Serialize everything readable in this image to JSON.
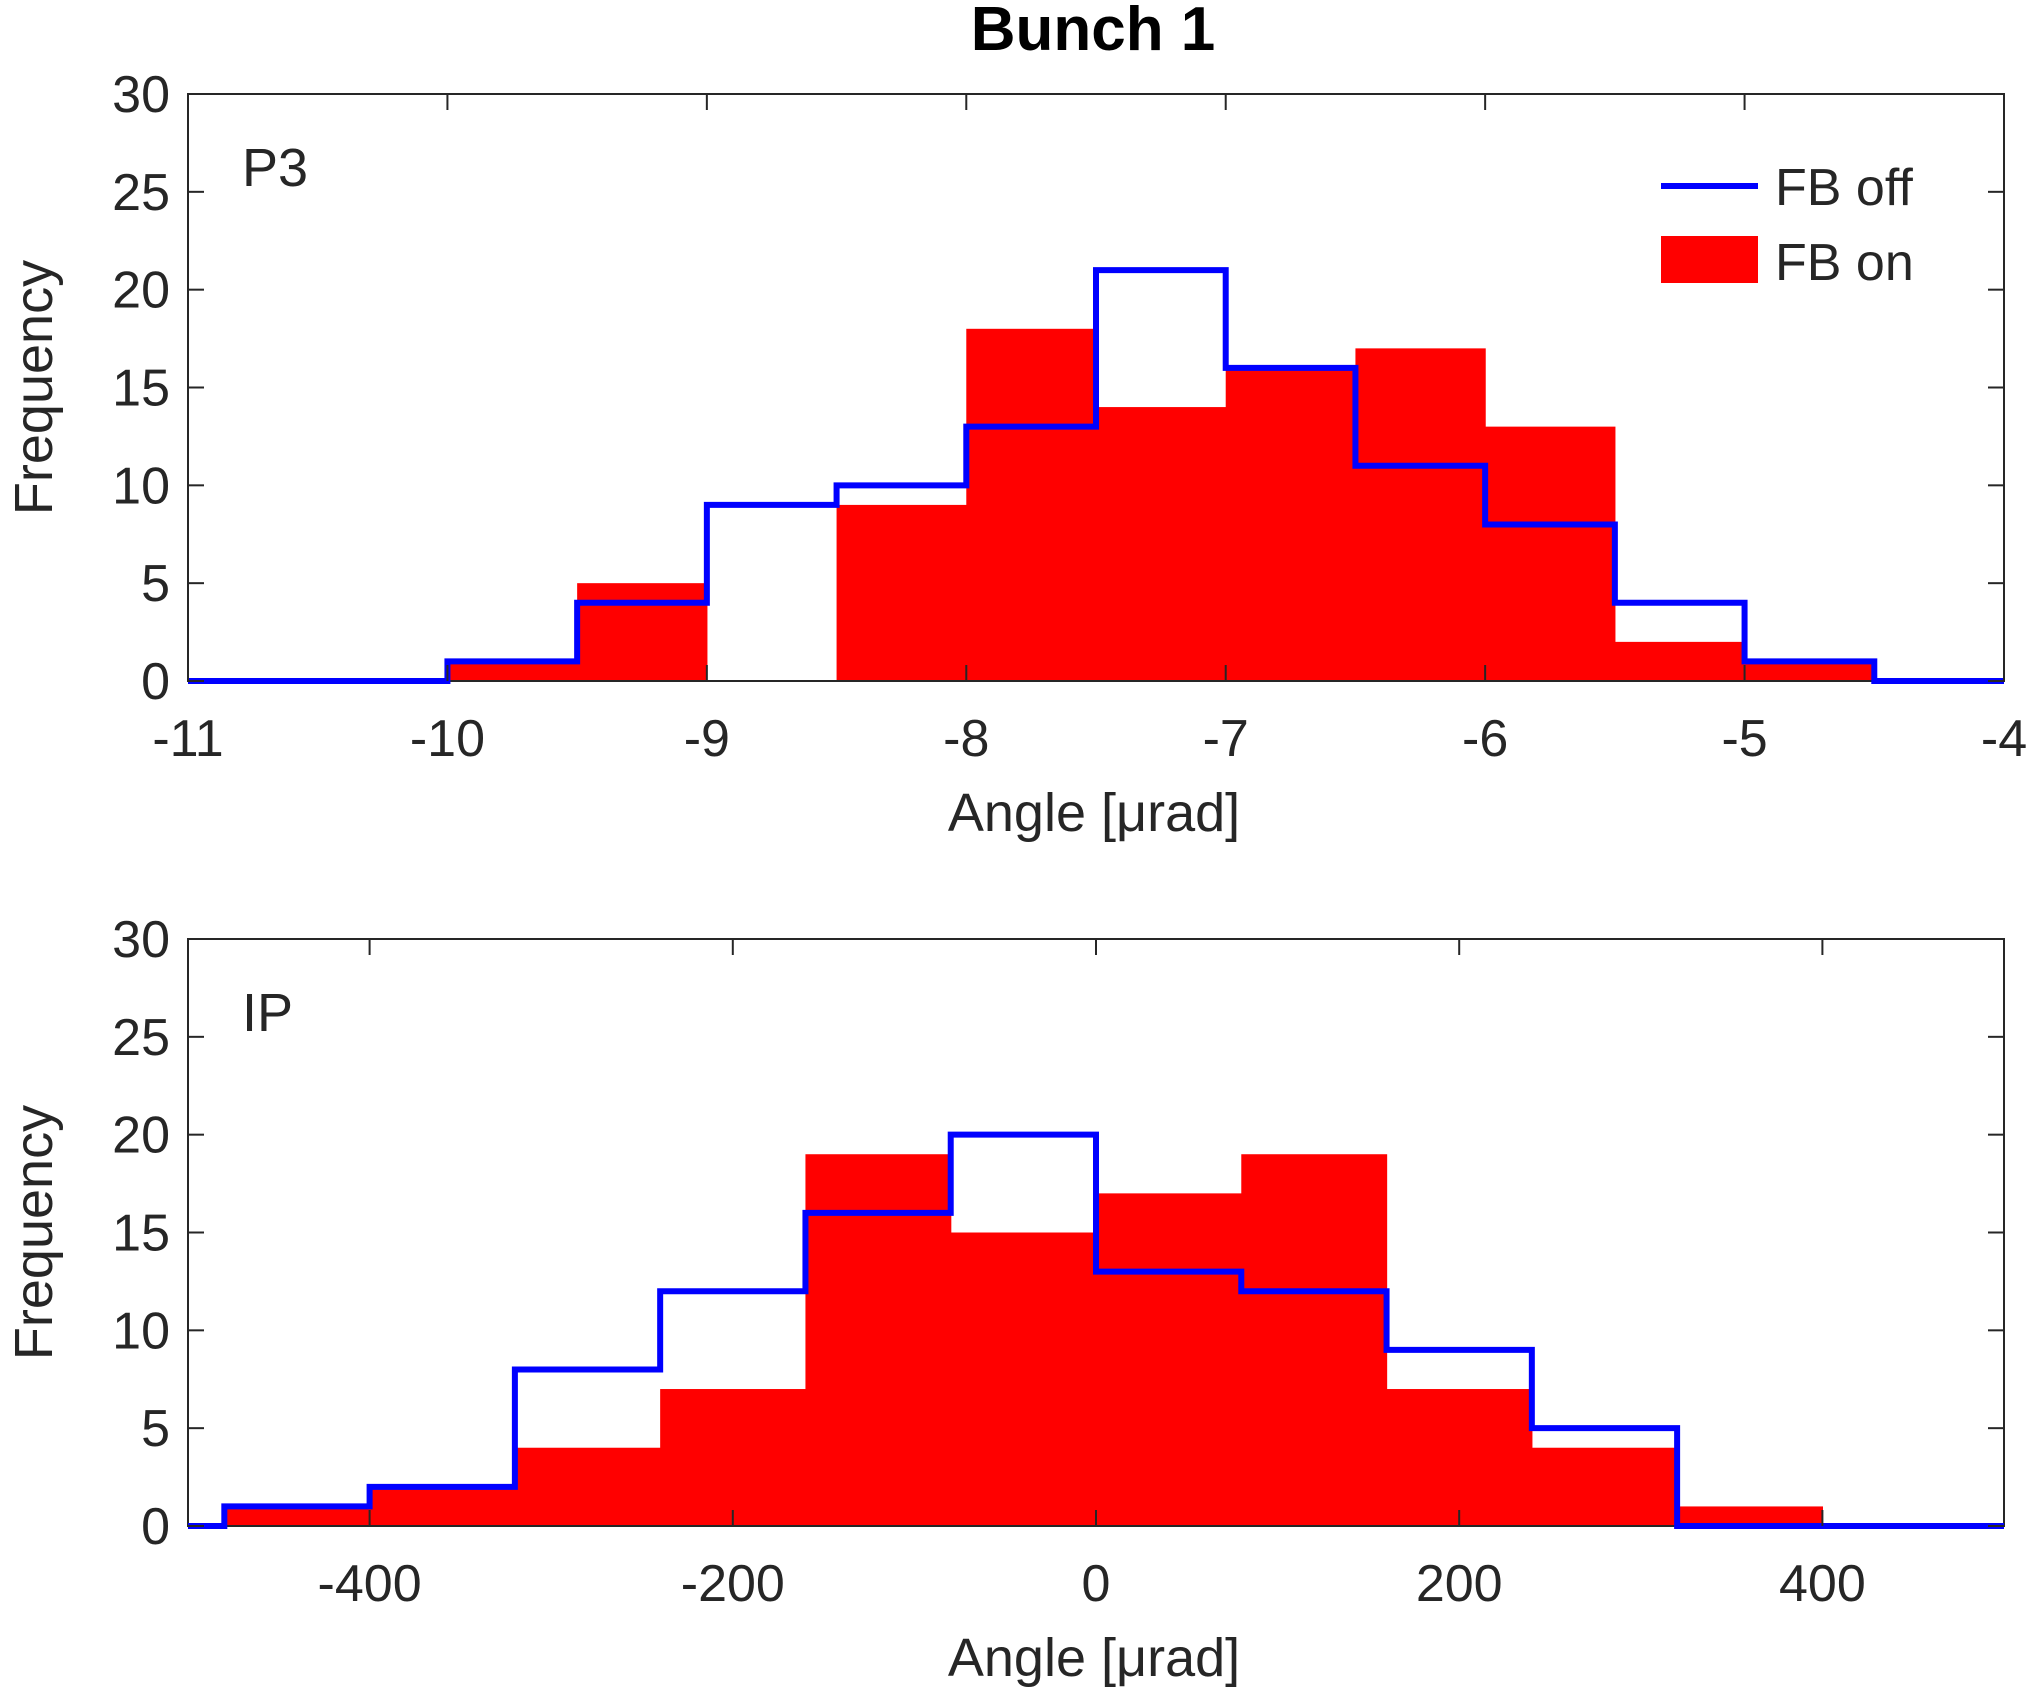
{
  "title": "Bunch 1",
  "colors": {
    "fb_off": "#0000ff",
    "fb_on": "#ff0000",
    "axis": "#262626"
  },
  "legend": {
    "position": "top-right",
    "entries": [
      "FB off",
      "FB on"
    ]
  },
  "chart_data": [
    {
      "type": "histogram",
      "panel_label": "P3",
      "xlabel": "Angle [μrad]",
      "ylabel": "Frequency",
      "xlim": [
        -11,
        -4
      ],
      "ylim": [
        0,
        30
      ],
      "xticks": [
        -11,
        -10,
        -9,
        -8,
        -7,
        -6,
        -5,
        -4
      ],
      "xtick_labels": [
        "-11",
        "-10",
        "-9",
        "-8",
        "-7",
        "-6",
        "-5",
        "-4"
      ],
      "yticks": [
        0,
        5,
        10,
        15,
        20,
        25,
        30
      ],
      "ytick_labels": [
        "0",
        "5",
        "10",
        "15",
        "20",
        "25",
        "30"
      ],
      "bin_edges": [
        -10,
        -9.5,
        -9,
        -8.5,
        -8,
        -7.5,
        -7,
        -6.5,
        -6,
        -5.5,
        -5,
        -4.5
      ],
      "series": [
        {
          "name": "FB on",
          "style": "filled",
          "values": [
            1,
            5,
            0,
            9,
            18,
            14,
            16,
            17,
            13,
            2,
            1
          ]
        },
        {
          "name": "FB off",
          "style": "stairs",
          "values": [
            1,
            4,
            9,
            10,
            13,
            21,
            16,
            11,
            8,
            4,
            1
          ]
        }
      ]
    },
    {
      "type": "histogram",
      "panel_label": "IP",
      "xlabel": "Angle [μrad]",
      "ylabel": "Frequency",
      "xlim": [
        -500,
        500
      ],
      "ylim": [
        0,
        30
      ],
      "xticks": [
        -400,
        -200,
        0,
        200,
        400
      ],
      "xtick_labels": [
        "-400",
        "-200",
        "0",
        "200",
        "400"
      ],
      "yticks": [
        0,
        5,
        10,
        15,
        20,
        25,
        30
      ],
      "ytick_labels": [
        "0",
        "5",
        "10",
        "15",
        "20",
        "25",
        "30"
      ],
      "bin_edges": [
        -480,
        -400,
        -320,
        -240,
        -160,
        -80,
        0,
        80,
        160,
        240,
        320,
        400
      ],
      "series": [
        {
          "name": "FB on",
          "style": "filled",
          "values": [
            1,
            2,
            4,
            7,
            19,
            15,
            17,
            19,
            7,
            4,
            1
          ]
        },
        {
          "name": "FB off",
          "style": "stairs",
          "values": [
            1,
            2,
            8,
            12,
            16,
            20,
            13,
            12,
            9,
            5,
            0
          ]
        }
      ]
    }
  ]
}
